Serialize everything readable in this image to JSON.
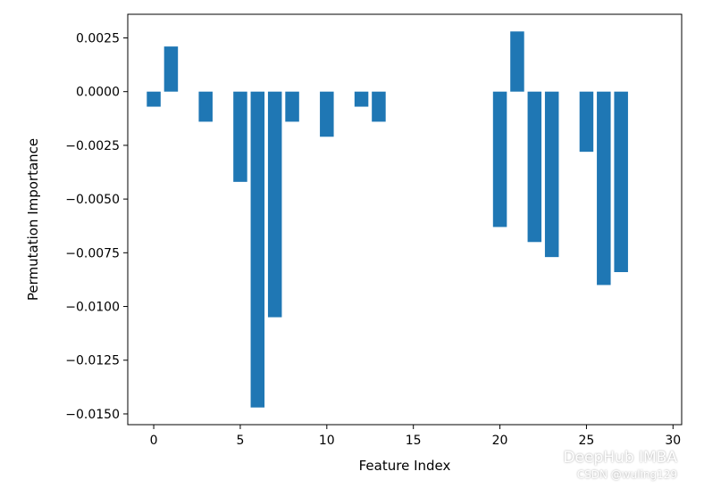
{
  "chart_data": {
    "type": "bar",
    "title": "",
    "xlabel": "Feature Index",
    "ylabel": "Permutation Importance",
    "xlim": [
      -1.5,
      30.5
    ],
    "ylim": [
      -0.0155,
      0.0036
    ],
    "xticks": [
      0,
      5,
      10,
      15,
      20,
      25,
      30
    ],
    "yticks": [
      0.0025,
      0.0,
      -0.0025,
      -0.005,
      -0.0075,
      -0.01,
      -0.0125,
      -0.015
    ],
    "ytick_labels": [
      "0.0025",
      "0.0000",
      "−0.0025",
      "−0.0050",
      "−0.0075",
      "−0.0100",
      "−0.0125",
      "−0.0150"
    ],
    "grid": false,
    "bar_color": "#1f77b4",
    "x": [
      0,
      1,
      3,
      5,
      6,
      7,
      8,
      10,
      12,
      13,
      20,
      21,
      22,
      23,
      25,
      26,
      27
    ],
    "values": [
      -0.0007,
      0.0021,
      -0.0014,
      -0.0042,
      -0.0147,
      -0.0105,
      -0.0014,
      -0.0021,
      -0.0007,
      -0.0014,
      -0.0063,
      0.0028,
      -0.007,
      -0.0077,
      -0.0028,
      -0.009,
      -0.0084
    ]
  },
  "watermark": {
    "brand": "DeepHub IMBA",
    "credit": "CSDN @wuling129",
    "icon": "wechat-icon"
  }
}
